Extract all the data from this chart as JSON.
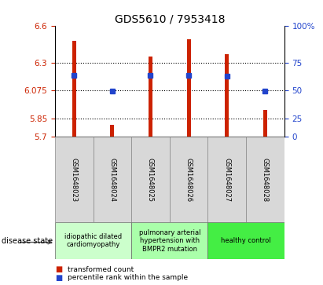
{
  "title": "GDS5610 / 7953418",
  "samples": [
    "GSM1648023",
    "GSM1648024",
    "GSM1648025",
    "GSM1648026",
    "GSM1648027",
    "GSM1648028"
  ],
  "bar_values": [
    6.48,
    5.8,
    6.35,
    6.49,
    6.37,
    5.92
  ],
  "bar_bottom": 5.7,
  "blue_dot_values": [
    6.195,
    6.07,
    6.195,
    6.195,
    6.19,
    6.07
  ],
  "ylim": [
    5.7,
    6.6
  ],
  "yticks_left": [
    5.7,
    5.85,
    6.075,
    6.3,
    6.6
  ],
  "ytick_labels_left": [
    "5.7",
    "5.85",
    "6.075",
    "6.3",
    "6.6"
  ],
  "yticks_right_labels": [
    "0",
    "25",
    "50",
    "75",
    "100%"
  ],
  "right_tick_positions": [
    5.7,
    5.85,
    6.075,
    6.3,
    6.6
  ],
  "grid_lines": [
    5.85,
    6.075,
    6.3
  ],
  "bar_color": "#cc2200",
  "blue_color": "#2244cc",
  "disease_groups": [
    {
      "label": "idiopathic dilated\ncardiomyopathy",
      "indices": [
        0,
        1
      ],
      "color": "#ccffcc"
    },
    {
      "label": "pulmonary arterial\nhypertension with\nBMPR2 mutation",
      "indices": [
        2,
        3
      ],
      "color": "#aaffaa"
    },
    {
      "label": "healthy control",
      "indices": [
        4,
        5
      ],
      "color": "#44ee44"
    }
  ],
  "disease_state_label": "disease state",
  "legend_red": "transformed count",
  "legend_blue": "percentile rank within the sample",
  "bg_color": "#d8d8d8",
  "plot_bg": "#ffffff",
  "title_fontsize": 10,
  "axis_label_color_red": "#cc2200",
  "axis_label_color_blue": "#2244cc",
  "bar_width": 0.1,
  "blue_marker_size": 4
}
